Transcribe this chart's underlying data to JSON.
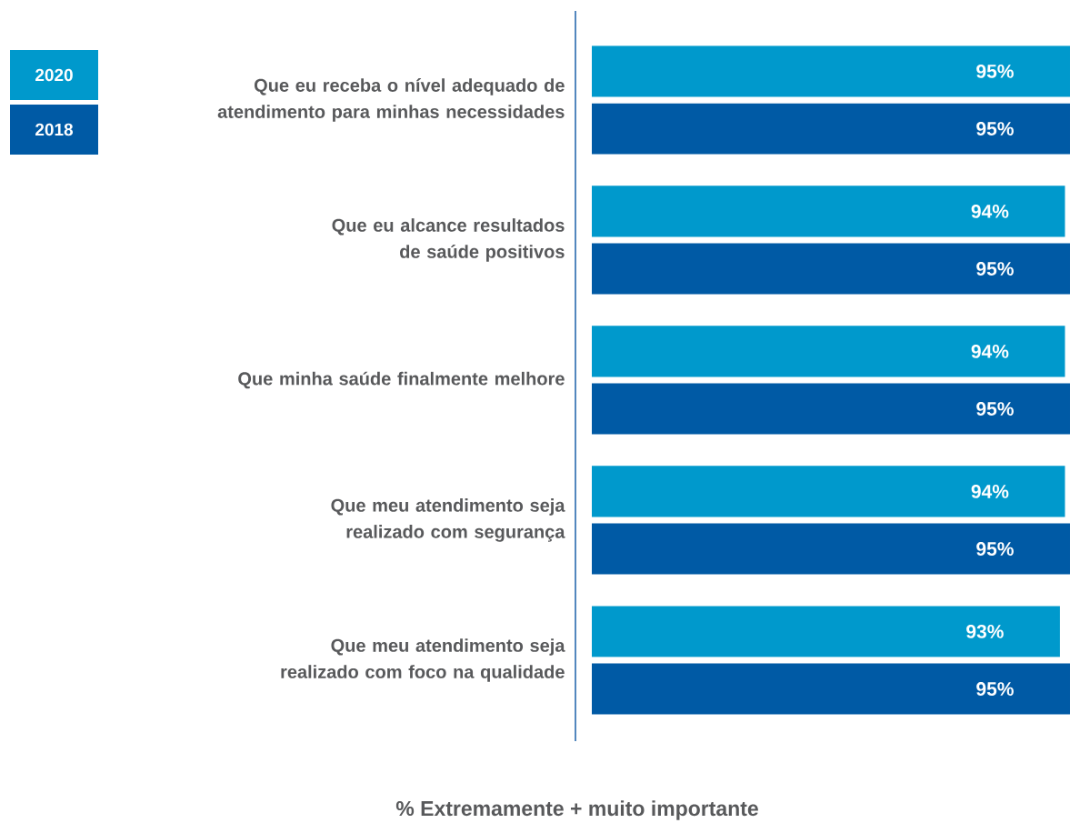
{
  "chart_data": {
    "type": "bar",
    "orientation": "horizontal",
    "xlabel": "% Extremamente + muito importante",
    "categories": [
      "Que eu receba o nível adequado de atendimento para minhas necessidades",
      "Que eu alcance resultados de saúde positivos",
      "Que minha saúde finalmente melhore",
      "Que meu atendimento seja realizado com segurança",
      "Que meu atendimento seja realizado com foco na qualidade"
    ],
    "series": [
      {
        "name": "2020",
        "color": "#0099cc",
        "values": [
          95,
          94,
          94,
          94,
          93
        ],
        "value_labels": [
          "95%",
          "94%",
          "94%",
          "94%",
          "93%"
        ]
      },
      {
        "name": "2018",
        "color": "#005aa5",
        "values": [
          95,
          95,
          95,
          95,
          95
        ],
        "value_labels": [
          "95%",
          "95%",
          "95%",
          "95%",
          "95%"
        ]
      }
    ],
    "legend": "top left"
  }
}
